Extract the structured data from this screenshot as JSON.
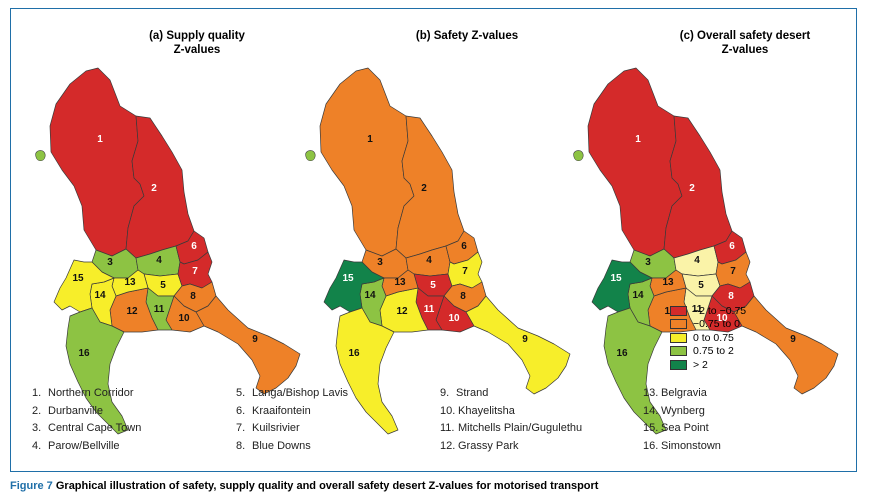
{
  "maps": [
    {
      "title_line1": "(a) Supply quality",
      "title_line2": "Z-values",
      "fills": {
        "1": "red",
        "2": "red",
        "3": "lightgreen",
        "4": "lightgreen",
        "5": "yellow",
        "6": "red",
        "7": "red",
        "8": "orange",
        "9": "orange",
        "10": "orange",
        "11": "lightgreen",
        "12": "orange",
        "13": "yellow",
        "14": "yellow",
        "15": "yellow",
        "16": "lightgreen"
      }
    },
    {
      "title_line1": "(b) Safety Z-values",
      "title_line2": "",
      "fills": {
        "1": "orange",
        "2": "orange",
        "3": "orange",
        "4": "orange",
        "5": "red",
        "6": "orange",
        "7": "yellow",
        "8": "orange",
        "9": "yellow",
        "10": "red",
        "11": "red",
        "12": "yellow",
        "13": "orange",
        "14": "lightgreen",
        "15": "darkgreen",
        "16": "yellow"
      }
    },
    {
      "title_line1": "(c) Overall safety desert",
      "title_line2": "Z-values",
      "fills": {
        "1": "red",
        "2": "red",
        "3": "lightgreen",
        "4": "paleyellow",
        "5": "paleyellow",
        "6": "red",
        "7": "orange",
        "8": "red",
        "9": "orange",
        "10": "red",
        "11": "paleyellow",
        "12": "orange",
        "13": "orange",
        "14": "lightgreen",
        "15": "darkgreen",
        "16": "lightgreen"
      }
    }
  ],
  "colors": {
    "red": "#d42a2a",
    "orange": "#ee8128",
    "yellow": "#f7ee2a",
    "paleyellow": "#faf3a8",
    "lightgreen": "#8dc343",
    "darkgreen": "#12834a"
  },
  "legend": [
    {
      "label": "−2 to −0.75",
      "color": "red"
    },
    {
      "label": "−0.75 to 0",
      "color": "orange"
    },
    {
      "label": "0 to 0.75",
      "color": "yellow"
    },
    {
      "label": "0.75 to 2",
      "color": "lightgreen"
    },
    {
      "label": "> 2",
      "color": "darkgreen"
    }
  ],
  "regions": [
    {
      "num": "1.",
      "name": "Northern Corridor"
    },
    {
      "num": "2.",
      "name": "Durbanville"
    },
    {
      "num": "3.",
      "name": "Central Cape Town"
    },
    {
      "num": "4.",
      "name": "Parow/Bellville"
    },
    {
      "num": "5.",
      "name": "Langa/Bishop Lavis"
    },
    {
      "num": "6.",
      "name": "Kraaifontein"
    },
    {
      "num": "7.",
      "name": "Kuilsrivier"
    },
    {
      "num": "8.",
      "name": "Blue Downs"
    },
    {
      "num": "9.",
      "name": "Strand"
    },
    {
      "num": "10.",
      "name": "Khayelitsha"
    },
    {
      "num": "11.",
      "name": "Mitchells Plain/Gugulethu"
    },
    {
      "num": "12.",
      "name": "Grassy Park"
    },
    {
      "num": "13.",
      "name": "Belgravia"
    },
    {
      "num": "14.",
      "name": "Wynberg"
    },
    {
      "num": "15.",
      "name": "Sea Point"
    },
    {
      "num": "16.",
      "name": "Simonstown"
    }
  ],
  "caption": {
    "figure_label": "Figure 7",
    "text": " Graphical illustration of safety, supply quality and overall safety desert Z-values for motorised transport"
  }
}
